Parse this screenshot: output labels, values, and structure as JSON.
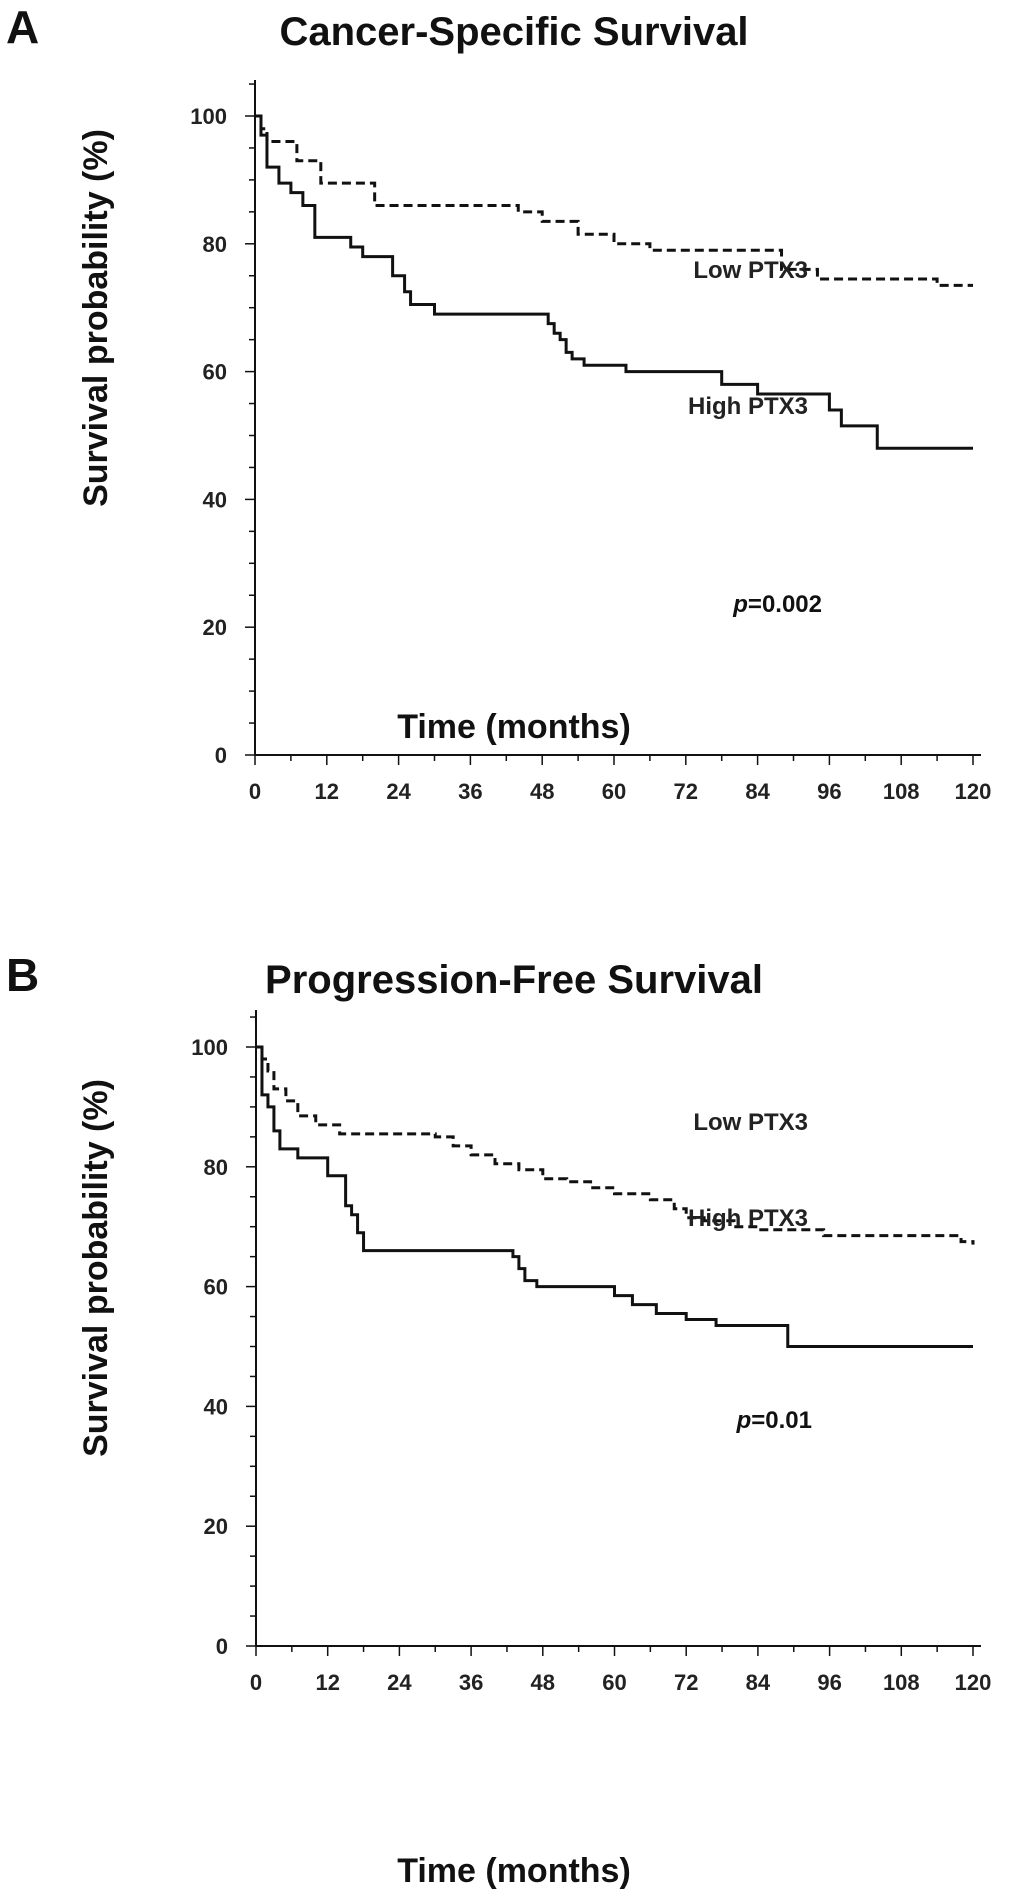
{
  "colors": {
    "line": "#111111",
    "background": "#ffffff"
  },
  "chart_data": [
    {
      "type": "line",
      "panel_label": "A",
      "title": "Cancer-Specific Survival",
      "xlabel": "Time (months)",
      "ylabel": "Survival probability (%)",
      "xlim": [
        0,
        120
      ],
      "ylim": [
        0,
        100
      ],
      "xticks": [
        0,
        12,
        24,
        36,
        48,
        60,
        72,
        84,
        96,
        108,
        120
      ],
      "yticks": [
        0,
        20,
        40,
        60,
        80,
        100
      ],
      "annotation": {
        "prefix": "p",
        "text": "=0.002"
      },
      "series": [
        {
          "name": "Low PTX3",
          "style": "dashed",
          "x": [
            0,
            1,
            2,
            7,
            11,
            20,
            44,
            48,
            54,
            60,
            66,
            88,
            94,
            114,
            120
          ],
          "y": [
            100,
            98,
            96,
            93,
            89.5,
            86,
            85,
            83.5,
            81.5,
            80,
            79,
            76,
            74.5,
            73.5,
            73.5
          ]
        },
        {
          "name": "High PTX3",
          "style": "solid",
          "x": [
            0,
            1,
            2,
            4,
            6,
            8,
            10,
            16,
            18,
            23,
            25,
            26,
            30,
            49,
            50,
            51,
            52,
            53,
            55,
            56,
            62,
            78,
            84,
            96,
            98,
            104,
            120
          ],
          "y": [
            100,
            97,
            92,
            89.5,
            88,
            86,
            81,
            79.5,
            78,
            75,
            72.5,
            70.5,
            69,
            67.5,
            66,
            65,
            63,
            62,
            61,
            61,
            60,
            58,
            56.5,
            54,
            51.5,
            48,
            48
          ]
        }
      ]
    },
    {
      "type": "line",
      "panel_label": "B",
      "title": "Progression-Free Survival",
      "xlabel": "Time (months)",
      "ylabel": "Survival probability (%)",
      "xlim": [
        0,
        120
      ],
      "ylim": [
        0,
        100
      ],
      "xticks": [
        0,
        12,
        24,
        36,
        48,
        60,
        72,
        84,
        96,
        108,
        120
      ],
      "yticks": [
        0,
        20,
        40,
        60,
        80,
        100
      ],
      "annotation": {
        "prefix": "p",
        "text": "=0.01"
      },
      "series": [
        {
          "name": "Low PTX3",
          "style": "dashed",
          "x": [
            0,
            1,
            2,
            3,
            5,
            7,
            10,
            14,
            30,
            33,
            36,
            40,
            44,
            48,
            52,
            56,
            60,
            66,
            70,
            72,
            75,
            80,
            84,
            95,
            118,
            120
          ],
          "y": [
            100,
            98,
            96,
            93,
            91,
            88.5,
            87,
            85.5,
            85,
            83.5,
            82,
            80.5,
            79.5,
            78,
            77.5,
            76.5,
            75.5,
            74.5,
            73,
            71.5,
            71,
            70,
            69.5,
            68.5,
            67.5,
            67
          ]
        },
        {
          "name": "High PTX3",
          "style": "solid",
          "x": [
            0,
            1,
            2,
            3,
            4,
            7,
            12,
            15,
            16,
            17,
            18,
            43,
            44,
            45,
            47,
            60,
            63,
            67,
            72,
            77,
            89,
            120
          ],
          "y": [
            100,
            92,
            90,
            86,
            83,
            81.5,
            78.5,
            73.5,
            72,
            69,
            66,
            65,
            63,
            61,
            60,
            58.5,
            57,
            55.5,
            54.5,
            53.5,
            50,
            50
          ]
        }
      ]
    }
  ]
}
